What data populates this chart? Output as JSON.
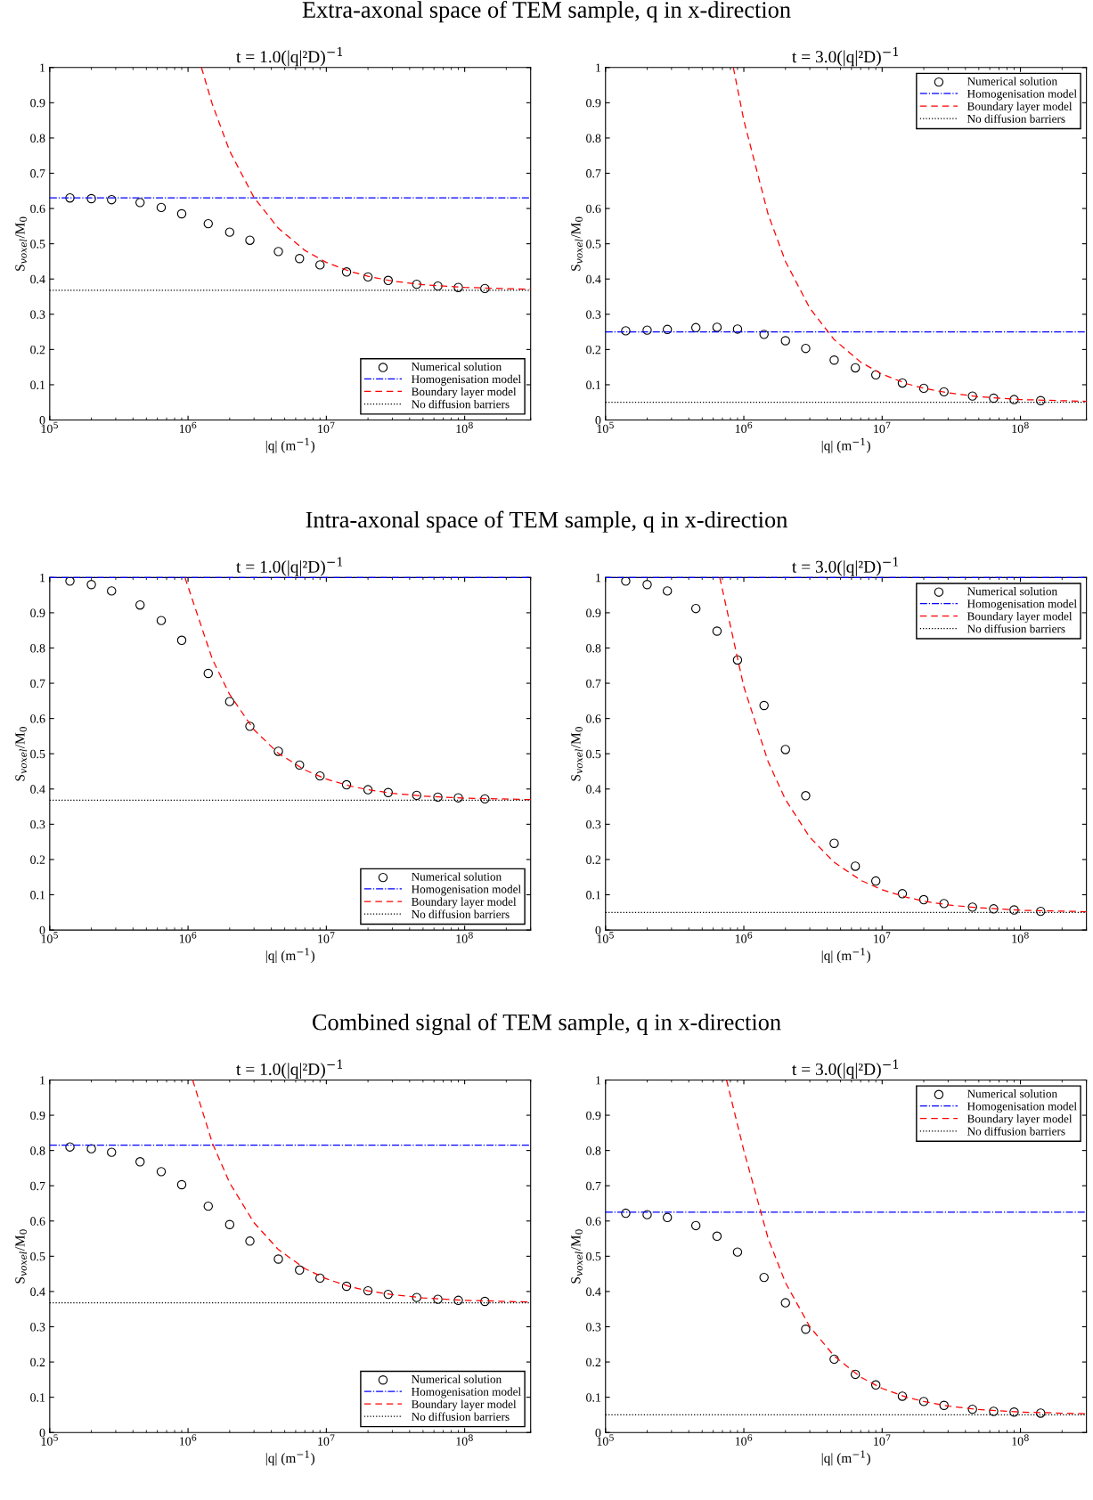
{
  "chart_data": [
    {
      "type": "line",
      "title": "Extra-axonal space of TEM sample, q in x-direction",
      "subtitle": "t = 1.0(|q|²D)$^{−1}$",
      "xlabel": "|q| (m$^{−1}$)",
      "ylabel": "S$_{voxel}$/M$_{0}$",
      "log": "x",
      "xlim": [
        100000,
        300000000
      ],
      "xticks": [
        {
          "value": 100000,
          "label": "10$^{5}$"
        },
        {
          "value": 1000000,
          "label": "10$^{6}$"
        },
        {
          "value": 10000000,
          "label": "10$^{7}$"
        },
        {
          "value": 100000000,
          "label": "10$^{8}$"
        }
      ],
      "ylim": [
        0,
        1
      ],
      "yticks": [
        0,
        0.1,
        0.2,
        0.3,
        0.4,
        0.5,
        0.6,
        0.7,
        0.8,
        0.9,
        1
      ],
      "legend": "bottom right",
      "series": [
        {
          "type": "scatter",
          "name": "Numerical solution",
          "color": "#000000",
          "marker": "circle",
          "x": [
            140000,
            200000,
            280000,
            450000,
            640000,
            900000,
            1400000,
            2000000,
            2800000,
            4500000,
            6400000,
            9000000,
            14000000,
            20000000,
            28000000,
            45000000,
            64000000,
            90000000,
            140000000
          ],
          "values": [
            0.63,
            0.628,
            0.625,
            0.617,
            0.603,
            0.585,
            0.557,
            0.533,
            0.51,
            0.478,
            0.458,
            0.44,
            0.42,
            0.406,
            0.396,
            0.385,
            0.38,
            0.376,
            0.373
          ]
        },
        {
          "type": "line",
          "name": "Homogenisation model",
          "color": "#0000ff",
          "line_style": "dashdot",
          "x": [
            100000,
            300000000
          ],
          "values": [
            0.63,
            0.63
          ]
        },
        {
          "type": "line",
          "name": "Boundary layer model",
          "color": "#ff0000",
          "line_style": "dashed",
          "x": [
            1250000,
            1500000,
            2000000,
            3000000,
            4500000,
            7000000,
            10000000,
            15000000,
            20000000,
            30000000,
            50000000,
            100000000,
            300000000
          ],
          "values": [
            1.0,
            0.895,
            0.763,
            0.631,
            0.544,
            0.481,
            0.447,
            0.421,
            0.408,
            0.394,
            0.384,
            0.376,
            0.371
          ]
        },
        {
          "type": "line",
          "name": "No diffusion barriers",
          "color": "#000000",
          "line_style": "dotted",
          "x": [
            100000,
            300000000
          ],
          "values": [
            0.368,
            0.368
          ]
        }
      ]
    },
    {
      "type": "line",
      "subtitle": "t = 3.0(|q|²D)$^{−1}$",
      "xlabel": "|q| (m$^{−1}$)",
      "ylabel": "S$_{voxel}$/M$_{0}$",
      "log": "x",
      "xlim": [
        100000,
        300000000
      ],
      "xticks": [
        {
          "value": 100000,
          "label": "10$^{5}$"
        },
        {
          "value": 1000000,
          "label": "10$^{6}$"
        },
        {
          "value": 10000000,
          "label": "10$^{7}$"
        },
        {
          "value": 100000000,
          "label": "10$^{8}$"
        }
      ],
      "ylim": [
        0,
        1
      ],
      "yticks": [
        0,
        0.1,
        0.2,
        0.3,
        0.4,
        0.5,
        0.6,
        0.7,
        0.8,
        0.9,
        1
      ],
      "legend": "top right",
      "series": [
        {
          "type": "scatter",
          "name": "Numerical solution",
          "color": "#000000",
          "marker": "circle",
          "x": [
            140000,
            200000,
            280000,
            450000,
            640000,
            900000,
            1400000,
            2000000,
            2800000,
            4500000,
            6400000,
            9000000,
            14000000,
            20000000,
            28000000,
            45000000,
            64000000,
            90000000,
            140000000
          ],
          "values": [
            0.253,
            0.255,
            0.257,
            0.262,
            0.263,
            0.258,
            0.243,
            0.225,
            0.203,
            0.17,
            0.148,
            0.128,
            0.105,
            0.09,
            0.08,
            0.068,
            0.062,
            0.058,
            0.055
          ]
        },
        {
          "type": "line",
          "name": "Homogenisation model",
          "color": "#0000ff",
          "line_style": "dashdot",
          "x": [
            100000,
            300000000
          ],
          "values": [
            0.25,
            0.25
          ]
        },
        {
          "type": "line",
          "name": "Boundary layer model",
          "color": "#ff0000",
          "line_style": "dashed",
          "x": [
            840000,
            1000000,
            1500000,
            2000000,
            3000000,
            4500000,
            7000000,
            10000000,
            15000000,
            20000000,
            30000000,
            50000000,
            100000000,
            300000000
          ],
          "values": [
            1.0,
            0.85,
            0.583,
            0.45,
            0.317,
            0.228,
            0.164,
            0.13,
            0.103,
            0.09,
            0.077,
            0.066,
            0.058,
            0.053
          ]
        },
        {
          "type": "line",
          "name": "No diffusion barriers",
          "color": "#000000",
          "line_style": "dotted",
          "x": [
            100000,
            300000000
          ],
          "values": [
            0.05,
            0.05
          ]
        }
      ]
    },
    {
      "type": "line",
      "title": "Intra-axonal space of TEM sample, q in x-direction",
      "subtitle": "t = 1.0(|q|²D)$^{−1}$",
      "xlabel": "|q| (m$^{−1}$)",
      "ylabel": "S$_{voxel}$/M$_{0}$",
      "log": "x",
      "xlim": [
        100000,
        300000000
      ],
      "xticks": [
        {
          "value": 100000,
          "label": "10$^{5}$"
        },
        {
          "value": 1000000,
          "label": "10$^{6}$"
        },
        {
          "value": 10000000,
          "label": "10$^{7}$"
        },
        {
          "value": 100000000,
          "label": "10$^{8}$"
        }
      ],
      "ylim": [
        0,
        1
      ],
      "yticks": [
        0,
        0.1,
        0.2,
        0.3,
        0.4,
        0.5,
        0.6,
        0.7,
        0.8,
        0.9,
        1
      ],
      "legend": "bottom right",
      "series": [
        {
          "type": "scatter",
          "name": "Numerical solution",
          "color": "#000000",
          "marker": "circle",
          "x": [
            140000,
            200000,
            280000,
            450000,
            640000,
            900000,
            1400000,
            2000000,
            2800000,
            4500000,
            6400000,
            9000000,
            14000000,
            20000000,
            28000000,
            45000000,
            64000000,
            90000000,
            140000000
          ],
          "values": [
            0.99,
            0.98,
            0.962,
            0.922,
            0.878,
            0.822,
            0.728,
            0.648,
            0.578,
            0.507,
            0.468,
            0.437,
            0.412,
            0.398,
            0.39,
            0.382,
            0.377,
            0.375,
            0.372
          ]
        },
        {
          "type": "line",
          "name": "Homogenisation model",
          "color": "#0000ff",
          "line_style": "dashdot",
          "x": [
            100000,
            300000000
          ],
          "values": [
            1.0,
            1.0
          ]
        },
        {
          "type": "line",
          "name": "Boundary layer model",
          "color": "#ff0000",
          "line_style": "dashed",
          "x": [
            950000,
            1500000,
            2000000,
            3000000,
            4500000,
            7000000,
            10000000,
            15000000,
            20000000,
            30000000,
            50000000,
            100000000,
            300000000
          ],
          "values": [
            1.0,
            0.768,
            0.668,
            0.568,
            0.501,
            0.454,
            0.428,
            0.408,
            0.398,
            0.388,
            0.38,
            0.374,
            0.37
          ]
        },
        {
          "type": "line",
          "name": "No diffusion barriers",
          "color": "#000000",
          "line_style": "dotted",
          "x": [
            100000,
            300000000
          ],
          "values": [
            0.368,
            0.368
          ]
        }
      ]
    },
    {
      "type": "line",
      "subtitle": "t = 3.0(|q|²D)$^{−1}$",
      "xlabel": "|q| (m$^{−1}$)",
      "ylabel": "S$_{voxel}$/M$_{0}$",
      "log": "x",
      "xlim": [
        100000,
        300000000
      ],
      "xticks": [
        {
          "value": 100000,
          "label": "10$^{5}$"
        },
        {
          "value": 1000000,
          "label": "10$^{6}$"
        },
        {
          "value": 10000000,
          "label": "10$^{7}$"
        },
        {
          "value": 100000000,
          "label": "10$^{8}$"
        }
      ],
      "ylim": [
        0,
        1
      ],
      "yticks": [
        0,
        0.1,
        0.2,
        0.3,
        0.4,
        0.5,
        0.6,
        0.7,
        0.8,
        0.9,
        1
      ],
      "legend": "top right",
      "series": [
        {
          "type": "scatter",
          "name": "Numerical solution",
          "color": "#000000",
          "marker": "circle",
          "x": [
            140000,
            200000,
            280000,
            450000,
            640000,
            900000,
            1400000,
            2000000,
            2800000,
            4500000,
            6400000,
            9000000,
            14000000,
            20000000,
            28000000,
            45000000,
            64000000,
            90000000,
            140000000
          ],
          "values": [
            0.99,
            0.98,
            0.962,
            0.912,
            0.848,
            0.766,
            0.637,
            0.512,
            0.381,
            0.246,
            0.181,
            0.139,
            0.103,
            0.086,
            0.075,
            0.065,
            0.06,
            0.057,
            0.053
          ]
        },
        {
          "type": "line",
          "name": "Homogenisation model",
          "color": "#0000ff",
          "line_style": "dashdot",
          "x": [
            100000,
            300000000
          ],
          "values": [
            1.0,
            1.0
          ]
        },
        {
          "type": "line",
          "name": "Boundary layer model",
          "color": "#ff0000",
          "line_style": "dashed",
          "x": [
            670000,
            1000000,
            1500000,
            2000000,
            3000000,
            4500000,
            7000000,
            10000000,
            15000000,
            20000000,
            30000000,
            50000000,
            100000000,
            300000000
          ],
          "values": [
            1.0,
            0.69,
            0.477,
            0.37,
            0.263,
            0.192,
            0.141,
            0.114,
            0.093,
            0.082,
            0.071,
            0.063,
            0.056,
            0.052
          ]
        },
        {
          "type": "line",
          "name": "No diffusion barriers",
          "color": "#000000",
          "line_style": "dotted",
          "x": [
            100000,
            300000000
          ],
          "values": [
            0.05,
            0.05
          ]
        }
      ]
    },
    {
      "type": "line",
      "title": "Combined signal of TEM sample, q in x-direction",
      "subtitle": "t = 1.0(|q|²D)$^{−1}$",
      "xlabel": "|q| (m$^{−1}$)",
      "ylabel": "S$_{voxel}$/M$_{0}$",
      "log": "x",
      "xlim": [
        100000,
        300000000
      ],
      "xticks": [
        {
          "value": 100000,
          "label": "10$^{5}$"
        },
        {
          "value": 1000000,
          "label": "10$^{6}$"
        },
        {
          "value": 10000000,
          "label": "10$^{7}$"
        },
        {
          "value": 100000000,
          "label": "10$^{8}$"
        }
      ],
      "ylim": [
        0,
        1
      ],
      "yticks": [
        0,
        0.1,
        0.2,
        0.3,
        0.4,
        0.5,
        0.6,
        0.7,
        0.8,
        0.9,
        1
      ],
      "legend": "bottom right",
      "series": [
        {
          "type": "scatter",
          "name": "Numerical solution",
          "color": "#000000",
          "marker": "circle",
          "x": [
            140000,
            200000,
            280000,
            450000,
            640000,
            900000,
            1400000,
            2000000,
            2800000,
            4500000,
            6400000,
            9000000,
            14000000,
            20000000,
            28000000,
            45000000,
            64000000,
            90000000,
            140000000
          ],
          "values": [
            0.81,
            0.805,
            0.795,
            0.768,
            0.74,
            0.703,
            0.642,
            0.59,
            0.543,
            0.492,
            0.461,
            0.438,
            0.415,
            0.402,
            0.392,
            0.383,
            0.378,
            0.375,
            0.372
          ]
        },
        {
          "type": "line",
          "name": "Homogenisation model",
          "color": "#0000ff",
          "line_style": "dashdot",
          "x": [
            100000,
            300000000
          ],
          "values": [
            0.815,
            0.815
          ]
        },
        {
          "type": "line",
          "name": "Boundary layer model",
          "color": "#ff0000",
          "line_style": "dashed",
          "x": [
            1080000,
            1500000,
            2000000,
            3000000,
            4500000,
            7000000,
            10000000,
            15000000,
            20000000,
            30000000,
            50000000,
            100000000,
            300000000
          ],
          "values": [
            1.0,
            0.821,
            0.708,
            0.595,
            0.519,
            0.465,
            0.436,
            0.413,
            0.402,
            0.391,
            0.382,
            0.375,
            0.37
          ]
        },
        {
          "type": "line",
          "name": "No diffusion barriers",
          "color": "#000000",
          "line_style": "dotted",
          "x": [
            100000,
            300000000
          ],
          "values": [
            0.368,
            0.368
          ]
        }
      ]
    },
    {
      "type": "line",
      "subtitle": "t = 3.0(|q|²D)$^{−1}$",
      "xlabel": "|q| (m$^{−1}$)",
      "ylabel": "S$_{voxel}$/M$_{0}$",
      "log": "x",
      "xlim": [
        100000,
        300000000
      ],
      "xticks": [
        {
          "value": 100000,
          "label": "10$^{5}$"
        },
        {
          "value": 1000000,
          "label": "10$^{6}$"
        },
        {
          "value": 10000000,
          "label": "10$^{7}$"
        },
        {
          "value": 100000000,
          "label": "10$^{8}$"
        }
      ],
      "ylim": [
        0,
        1
      ],
      "yticks": [
        0,
        0.1,
        0.2,
        0.3,
        0.4,
        0.5,
        0.6,
        0.7,
        0.8,
        0.9,
        1
      ],
      "legend": "top right",
      "series": [
        {
          "type": "scatter",
          "name": "Numerical solution",
          "color": "#000000",
          "marker": "circle",
          "x": [
            140000,
            200000,
            280000,
            450000,
            640000,
            900000,
            1400000,
            2000000,
            2800000,
            4500000,
            6400000,
            9000000,
            14000000,
            20000000,
            28000000,
            45000000,
            64000000,
            90000000,
            140000000
          ],
          "values": [
            0.622,
            0.618,
            0.61,
            0.587,
            0.557,
            0.512,
            0.44,
            0.368,
            0.293,
            0.208,
            0.165,
            0.135,
            0.103,
            0.088,
            0.077,
            0.066,
            0.06,
            0.058,
            0.055
          ]
        },
        {
          "type": "line",
          "name": "Homogenisation model",
          "color": "#0000ff",
          "line_style": "dashdot",
          "x": [
            100000,
            300000000
          ],
          "values": [
            0.625,
            0.625
          ]
        },
        {
          "type": "line",
          "name": "Boundary layer model",
          "color": "#ff0000",
          "line_style": "dashed",
          "x": [
            750000,
            1000000,
            1500000,
            2000000,
            3000000,
            4500000,
            7000000,
            10000000,
            15000000,
            20000000,
            30000000,
            50000000,
            100000000,
            300000000
          ],
          "values": [
            1.0,
            0.8,
            0.55,
            0.425,
            0.3,
            0.217,
            0.157,
            0.125,
            0.1,
            0.088,
            0.075,
            0.065,
            0.058,
            0.053
          ]
        },
        {
          "type": "line",
          "name": "No diffusion barriers",
          "color": "#000000",
          "line_style": "dotted",
          "x": [
            100000,
            300000000
          ],
          "values": [
            0.05,
            0.05
          ]
        }
      ]
    }
  ]
}
